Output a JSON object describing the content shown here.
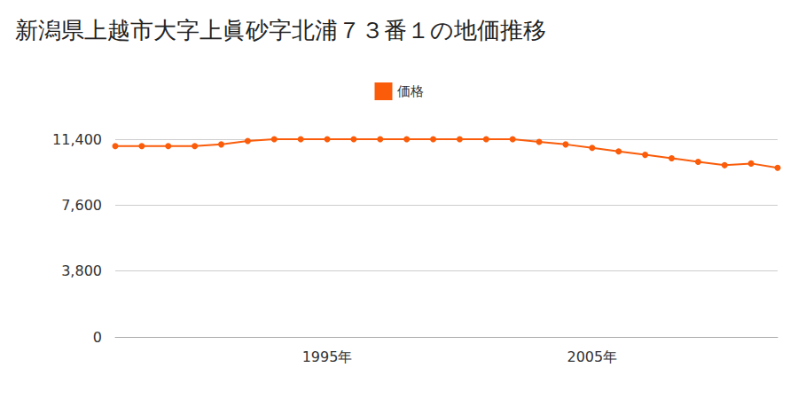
{
  "chart_data": {
    "type": "line",
    "title": "新潟県上越市大字上眞砂字北浦７３番１の地価推移",
    "categories": [
      null,
      null,
      null,
      null,
      null,
      null,
      null,
      null,
      "1995年",
      null,
      null,
      null,
      null,
      null,
      null,
      null,
      null,
      null,
      "2005年",
      null,
      null,
      null,
      null,
      null,
      null,
      null
    ],
    "series": [
      {
        "name": "価格",
        "color": "#fa5c0a",
        "marker": "circle",
        "values": [
          11000,
          11000,
          11000,
          11000,
          11100,
          11300,
          11400,
          11400,
          11400,
          11400,
          11400,
          11400,
          11400,
          11400,
          11400,
          11400,
          11250,
          11100,
          10900,
          10700,
          10500,
          10300,
          10100,
          9900,
          10000,
          9750
        ]
      }
    ],
    "ylim": [
      0,
      11400
    ],
    "yticks": [
      0,
      {
        "value": 3800,
        "label": "3,800"
      },
      {
        "value": 7600,
        "label": "7,600"
      },
      {
        "value": 11400,
        "label": "11,400"
      }
    ],
    "grid": true,
    "legend": "top"
  }
}
